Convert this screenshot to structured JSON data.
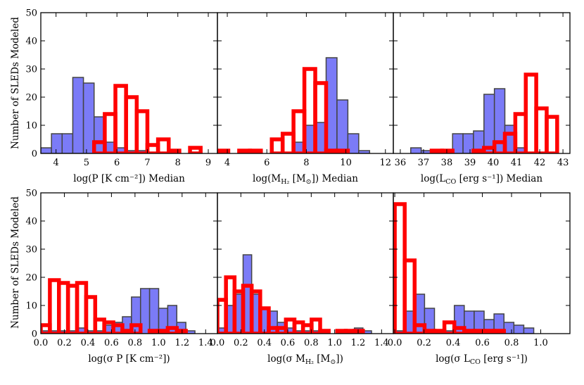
{
  "figure": {
    "ylabel_text": "Number of SLEDs Modeled"
  },
  "chart_data": [
    {
      "type": "bar",
      "id": "p_median",
      "xlabel": "log(P [K cm⁻²]) Median",
      "ylabel": "Number of SLEDs Modeled",
      "xlim": [
        3.5,
        9.3
      ],
      "ylim": [
        0,
        50
      ],
      "xticks": [
        4,
        5,
        6,
        7,
        8,
        9
      ],
      "yticks": [
        0,
        10,
        20,
        30,
        40,
        50
      ],
      "series": [
        {
          "name": "blue",
          "edges": [
            3.5,
            3.85,
            4.2,
            4.55,
            4.9,
            5.25,
            5.6,
            5.95,
            6.3,
            6.65,
            7.0,
            7.35,
            7.7,
            8.05,
            8.4,
            8.75,
            9.1
          ],
          "values": [
            2,
            7,
            7,
            27,
            25,
            13,
            4,
            2,
            1,
            1,
            0,
            0,
            0,
            0,
            0,
            0
          ]
        },
        {
          "name": "red",
          "edges": [
            3.5,
            3.85,
            4.2,
            4.55,
            4.9,
            5.25,
            5.6,
            5.95,
            6.3,
            6.65,
            7.0,
            7.35,
            7.7,
            8.05,
            8.4,
            8.75,
            9.1
          ],
          "values": [
            0,
            0,
            0,
            0,
            0,
            4,
            14,
            24,
            20,
            15,
            3,
            5,
            1,
            0,
            2,
            0
          ]
        }
      ]
    },
    {
      "type": "bar",
      "id": "m_median",
      "xlabel": "log(M_H2 [M_sun]) Median",
      "xlabel_parts": {
        "pre": "log(M",
        "sub": "H₂",
        "mid": " [M",
        "sun": "⊙",
        "post": "]) Median"
      },
      "xlim": [
        3.5,
        12.4
      ],
      "ylim": [
        0,
        50
      ],
      "xticks": [
        4,
        6,
        8,
        10,
        12
      ],
      "yticks": [
        0,
        10,
        20,
        30,
        40,
        50
      ],
      "series": [
        {
          "name": "blue",
          "edges": [
            3.5,
            4.05,
            4.6,
            5.15,
            5.7,
            6.25,
            6.8,
            7.35,
            7.9,
            8.45,
            9.0,
            9.55,
            10.1,
            10.65,
            11.2
          ],
          "values": [
            0,
            0,
            0,
            0,
            0,
            0,
            0,
            4,
            10,
            11,
            34,
            19,
            7,
            1
          ]
        },
        {
          "name": "red",
          "edges": [
            3.5,
            4.05,
            4.6,
            5.15,
            5.7,
            6.25,
            6.8,
            7.35,
            7.9,
            8.45,
            9.0,
            9.55,
            10.1,
            10.65,
            11.2
          ],
          "values": [
            1,
            0,
            1,
            1,
            0,
            5,
            7,
            15,
            30,
            25,
            1,
            1,
            0,
            0
          ]
        }
      ]
    },
    {
      "type": "bar",
      "id": "l_median",
      "xlabel": "log(L_CO [erg s⁻¹]) Median",
      "xlabel_parts": {
        "pre": "log(L",
        "sub": "CO",
        "post": " [erg s⁻¹]) Median"
      },
      "xlim": [
        35.7,
        43.3
      ],
      "ylim": [
        0,
        50
      ],
      "xticks": [
        36,
        37,
        38,
        39,
        40,
        41,
        42,
        43
      ],
      "yticks": [
        0,
        10,
        20,
        30,
        40,
        50
      ],
      "series": [
        {
          "name": "blue",
          "edges": [
            36.0,
            36.45,
            36.9,
            37.35,
            37.8,
            38.25,
            38.7,
            39.15,
            39.6,
            40.05,
            40.5,
            40.95,
            41.4,
            41.85,
            42.3,
            42.75,
            43.2
          ],
          "values": [
            0,
            2,
            1,
            0,
            1,
            7,
            7,
            8,
            21,
            23,
            10,
            2,
            0,
            0,
            0,
            0
          ]
        },
        {
          "name": "red",
          "edges": [
            36.0,
            36.45,
            36.9,
            37.35,
            37.8,
            38.25,
            38.7,
            39.15,
            39.6,
            40.05,
            40.5,
            40.95,
            41.4,
            41.85,
            42.3,
            42.75,
            43.2
          ],
          "values": [
            0,
            0,
            0,
            1,
            1,
            0,
            0,
            1,
            2,
            4,
            7,
            14,
            28,
            16,
            13,
            0
          ]
        }
      ]
    },
    {
      "type": "bar",
      "id": "p_sigma",
      "xlabel": "log(σ P [K cm⁻²])",
      "xlim": [
        0.0,
        1.5
      ],
      "ylim": [
        0,
        50
      ],
      "xticks": [
        0.0,
        0.2,
        0.4,
        0.6,
        0.8,
        1.0,
        1.2,
        1.4
      ],
      "xtick_labels": [
        "0.0",
        "0.2",
        "0.4",
        "0.6",
        "0.8",
        "1.0",
        "1.2",
        "1.4"
      ],
      "yticks": [
        0,
        10,
        20,
        30,
        40,
        50
      ],
      "series": [
        {
          "name": "blue",
          "edges": [
            0.0,
            0.077,
            0.154,
            0.231,
            0.308,
            0.385,
            0.462,
            0.539,
            0.616,
            0.693,
            0.77,
            0.847,
            0.924,
            1.001,
            1.078,
            1.155,
            1.232,
            1.309,
            1.386
          ],
          "values": [
            1,
            1,
            1,
            1,
            2,
            1,
            1,
            3,
            4,
            6,
            13,
            16,
            16,
            9,
            10,
            4,
            1,
            0
          ]
        },
        {
          "name": "red",
          "edges": [
            0.0,
            0.077,
            0.154,
            0.231,
            0.308,
            0.385,
            0.462,
            0.539,
            0.616,
            0.693,
            0.77,
            0.847,
            0.924,
            1.001,
            1.078,
            1.155,
            1.232,
            1.309,
            1.386
          ],
          "values": [
            3,
            19,
            18,
            17,
            18,
            13,
            5,
            4,
            3,
            1,
            3,
            0,
            1,
            1,
            2,
            1,
            0,
            0
          ]
        }
      ]
    },
    {
      "type": "bar",
      "id": "m_sigma",
      "xlabel": "log(σ M_H2 [M_sun])",
      "xlabel_parts": {
        "pre": "log(σ M",
        "sub": "H₂",
        "mid": " [M",
        "sun": "⊙",
        "post": "])"
      },
      "xlim": [
        0.0,
        1.5
      ],
      "ylim": [
        0,
        50
      ],
      "xticks": [
        0.0,
        0.2,
        0.4,
        0.6,
        0.8,
        1.0,
        1.2,
        1.4
      ],
      "xtick_labels": [
        "0.0",
        "0.2",
        "0.4",
        "0.6",
        "0.8",
        "1.0",
        "1.2",
        "1.4"
      ],
      "yticks": [
        0,
        10,
        20,
        30,
        40,
        50
      ],
      "series": [
        {
          "name": "blue",
          "edges": [
            0.0,
            0.073,
            0.146,
            0.219,
            0.292,
            0.365,
            0.438,
            0.511,
            0.584,
            0.657,
            0.73,
            0.803,
            0.876,
            0.949,
            1.022,
            1.095,
            1.168,
            1.241,
            1.314,
            1.387
          ],
          "values": [
            2,
            10,
            14,
            28,
            14,
            9,
            8,
            4,
            2,
            1,
            1,
            1,
            0,
            0,
            1,
            1,
            2,
            1,
            0
          ]
        },
        {
          "name": "red",
          "edges": [
            0.0,
            0.073,
            0.146,
            0.219,
            0.292,
            0.365,
            0.438,
            0.511,
            0.584,
            0.657,
            0.73,
            0.803,
            0.876,
            0.949,
            1.022,
            1.095,
            1.168,
            1.241,
            1.314,
            1.387
          ],
          "values": [
            12,
            20,
            15,
            17,
            15,
            9,
            2,
            2,
            5,
            4,
            3,
            5,
            1,
            0,
            1,
            1,
            1,
            0,
            0
          ]
        }
      ]
    },
    {
      "type": "bar",
      "id": "l_sigma",
      "xlabel": "log(σ L_CO [erg s⁻¹])",
      "xlabel_parts": {
        "pre": "log(σ L",
        "sub": "CO",
        "post": " [erg s⁻¹])"
      },
      "xlim": [
        -0.01,
        1.2
      ],
      "ylim": [
        0,
        50
      ],
      "xticks": [
        0.0,
        0.2,
        0.4,
        0.6,
        0.8,
        1.0
      ],
      "xtick_labels": [
        "0.0",
        "0.2",
        "0.4",
        "0.6",
        "0.8",
        "1.0"
      ],
      "yticks": [
        0,
        10,
        20,
        30,
        40,
        50
      ],
      "series": [
        {
          "name": "blue",
          "edges": [
            0.0,
            0.068,
            0.136,
            0.204,
            0.272,
            0.34,
            0.408,
            0.476,
            0.544,
            0.612,
            0.68,
            0.748,
            0.816,
            0.884,
            0.952,
            1.02,
            1.088
          ],
          "values": [
            1,
            8,
            14,
            9,
            1,
            1,
            10,
            8,
            8,
            5,
            7,
            4,
            3,
            2,
            0,
            0
          ]
        },
        {
          "name": "red",
          "edges": [
            0.0,
            0.068,
            0.136,
            0.204,
            0.272,
            0.34,
            0.408,
            0.476,
            0.544,
            0.612,
            0.68,
            0.748,
            0.816,
            0.884,
            0.952,
            1.02,
            1.088
          ],
          "values": [
            46,
            26,
            3,
            1,
            1,
            4,
            2,
            1,
            1,
            1,
            1,
            0,
            0,
            0,
            0,
            0
          ]
        }
      ]
    }
  ]
}
